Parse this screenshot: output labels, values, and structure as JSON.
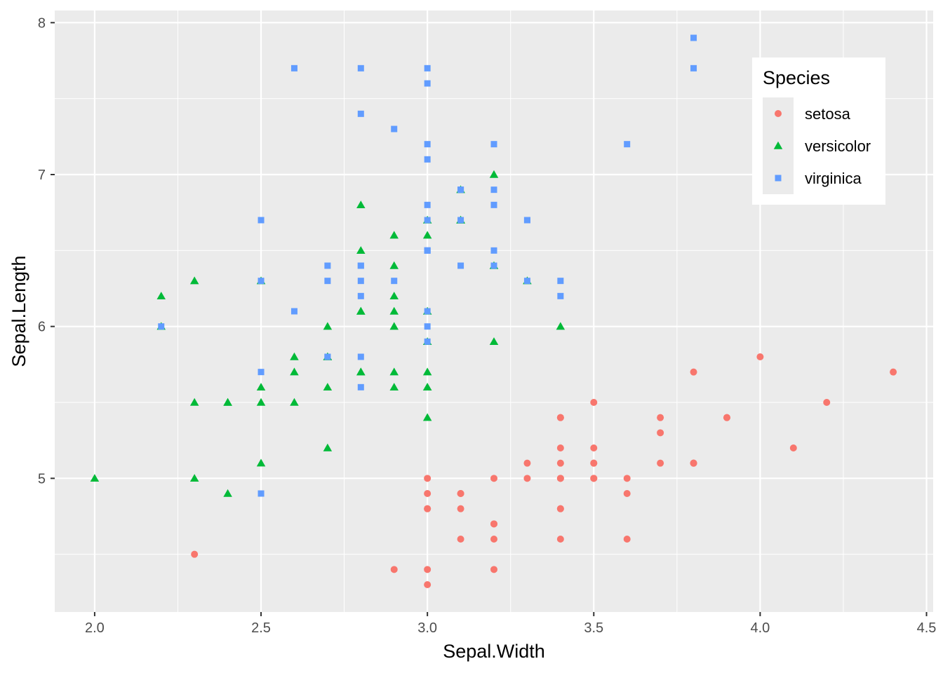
{
  "chart_data": {
    "type": "scatter",
    "title": "",
    "xlabel": "Sepal.Width",
    "ylabel": "Sepal.Length",
    "xlim": [
      1.88,
      4.52
    ],
    "ylim": [
      4.12,
      8.08
    ],
    "x_ticks": [
      2.0,
      2.5,
      3.0,
      3.5,
      4.0,
      4.5
    ],
    "x_tick_labels": [
      "2.0",
      "2.5",
      "3.0",
      "3.5",
      "4.0",
      "4.5"
    ],
    "y_ticks": [
      5,
      6,
      7,
      8
    ],
    "y_tick_labels": [
      "5",
      "6",
      "7",
      "8"
    ],
    "grid": true,
    "legend": {
      "title": "Species",
      "placement": "top-right inside"
    },
    "series": [
      {
        "name": "setosa",
        "color": "#F8766D",
        "shape": "circle",
        "points": [
          [
            3.5,
            5.1
          ],
          [
            3.0,
            4.9
          ],
          [
            3.2,
            4.7
          ],
          [
            3.1,
            4.6
          ],
          [
            3.6,
            5.0
          ],
          [
            3.9,
            5.4
          ],
          [
            3.4,
            4.6
          ],
          [
            3.4,
            5.0
          ],
          [
            2.9,
            4.4
          ],
          [
            3.1,
            4.9
          ],
          [
            3.7,
            5.4
          ],
          [
            3.4,
            4.8
          ],
          [
            3.0,
            4.8
          ],
          [
            3.0,
            4.3
          ],
          [
            4.0,
            5.8
          ],
          [
            4.4,
            5.7
          ],
          [
            3.9,
            5.4
          ],
          [
            3.5,
            5.1
          ],
          [
            3.8,
            5.7
          ],
          [
            3.8,
            5.1
          ],
          [
            3.4,
            5.4
          ],
          [
            3.7,
            5.1
          ],
          [
            3.6,
            4.6
          ],
          [
            3.3,
            5.1
          ],
          [
            3.4,
            4.8
          ],
          [
            3.0,
            5.0
          ],
          [
            3.4,
            5.0
          ],
          [
            3.5,
            5.2
          ],
          [
            3.4,
            5.2
          ],
          [
            3.2,
            4.7
          ],
          [
            3.1,
            4.8
          ],
          [
            3.4,
            5.4
          ],
          [
            4.1,
            5.2
          ],
          [
            4.2,
            5.5
          ],
          [
            3.1,
            4.9
          ],
          [
            3.2,
            5.0
          ],
          [
            3.5,
            5.5
          ],
          [
            3.6,
            4.9
          ],
          [
            3.0,
            4.4
          ],
          [
            3.4,
            5.1
          ],
          [
            3.5,
            5.0
          ],
          [
            2.3,
            4.5
          ],
          [
            3.2,
            4.4
          ],
          [
            3.5,
            5.0
          ],
          [
            3.8,
            5.1
          ],
          [
            3.0,
            4.8
          ],
          [
            3.8,
            5.1
          ],
          [
            3.2,
            4.6
          ],
          [
            3.7,
            5.3
          ],
          [
            3.3,
            5.0
          ]
        ]
      },
      {
        "name": "versicolor",
        "color": "#00BA38",
        "shape": "triangle",
        "points": [
          [
            3.2,
            7.0
          ],
          [
            3.2,
            6.4
          ],
          [
            3.1,
            6.9
          ],
          [
            2.3,
            5.5
          ],
          [
            2.8,
            6.5
          ],
          [
            2.8,
            5.7
          ],
          [
            3.3,
            6.3
          ],
          [
            2.4,
            4.9
          ],
          [
            2.9,
            6.6
          ],
          [
            2.7,
            5.2
          ],
          [
            2.0,
            5.0
          ],
          [
            3.0,
            5.9
          ],
          [
            2.2,
            6.0
          ],
          [
            2.9,
            6.1
          ],
          [
            2.9,
            5.6
          ],
          [
            3.1,
            6.7
          ],
          [
            3.0,
            5.6
          ],
          [
            2.7,
            5.8
          ],
          [
            2.2,
            6.2
          ],
          [
            2.5,
            5.6
          ],
          [
            3.2,
            5.9
          ],
          [
            2.8,
            6.1
          ],
          [
            2.5,
            6.3
          ],
          [
            2.8,
            6.1
          ],
          [
            2.9,
            6.4
          ],
          [
            3.0,
            6.6
          ],
          [
            2.8,
            6.8
          ],
          [
            3.0,
            6.7
          ],
          [
            2.9,
            6.0
          ],
          [
            2.6,
            5.7
          ],
          [
            2.4,
            5.5
          ],
          [
            2.4,
            5.5
          ],
          [
            2.7,
            5.8
          ],
          [
            2.7,
            6.0
          ],
          [
            3.0,
            5.4
          ],
          [
            3.4,
            6.0
          ],
          [
            3.1,
            6.7
          ],
          [
            2.3,
            6.3
          ],
          [
            3.0,
            5.6
          ],
          [
            2.5,
            5.5
          ],
          [
            2.6,
            5.5
          ],
          [
            3.0,
            6.1
          ],
          [
            2.6,
            5.8
          ],
          [
            2.3,
            5.0
          ],
          [
            2.7,
            5.6
          ],
          [
            3.0,
            5.7
          ],
          [
            2.9,
            5.7
          ],
          [
            2.9,
            6.2
          ],
          [
            2.5,
            5.1
          ],
          [
            2.8,
            5.7
          ]
        ]
      },
      {
        "name": "virginica",
        "color": "#619CFF",
        "shape": "square",
        "points": [
          [
            3.3,
            6.3
          ],
          [
            2.7,
            5.8
          ],
          [
            3.0,
            7.1
          ],
          [
            2.9,
            6.3
          ],
          [
            3.0,
            6.5
          ],
          [
            3.0,
            7.6
          ],
          [
            2.5,
            4.9
          ],
          [
            2.9,
            7.3
          ],
          [
            2.5,
            6.7
          ],
          [
            3.6,
            7.2
          ],
          [
            3.2,
            6.5
          ],
          [
            2.7,
            6.4
          ],
          [
            3.0,
            6.8
          ],
          [
            2.5,
            5.7
          ],
          [
            2.8,
            5.8
          ],
          [
            3.2,
            6.4
          ],
          [
            3.0,
            6.5
          ],
          [
            3.8,
            7.7
          ],
          [
            2.6,
            7.7
          ],
          [
            2.2,
            6.0
          ],
          [
            3.2,
            6.9
          ],
          [
            2.8,
            5.6
          ],
          [
            2.8,
            7.7
          ],
          [
            2.7,
            6.3
          ],
          [
            3.3,
            6.7
          ],
          [
            3.2,
            7.2
          ],
          [
            2.8,
            6.2
          ],
          [
            3.0,
            6.1
          ],
          [
            2.8,
            6.4
          ],
          [
            3.0,
            7.2
          ],
          [
            2.8,
            7.4
          ],
          [
            3.8,
            7.9
          ],
          [
            2.8,
            6.4
          ],
          [
            2.8,
            6.3
          ],
          [
            2.6,
            6.1
          ],
          [
            3.0,
            7.7
          ],
          [
            3.4,
            6.3
          ],
          [
            3.1,
            6.4
          ],
          [
            3.0,
            6.0
          ],
          [
            3.1,
            6.9
          ],
          [
            3.1,
            6.7
          ],
          [
            3.1,
            6.9
          ],
          [
            2.7,
            5.8
          ],
          [
            3.2,
            6.8
          ],
          [
            3.3,
            6.7
          ],
          [
            3.0,
            6.7
          ],
          [
            2.5,
            6.3
          ],
          [
            3.0,
            6.5
          ],
          [
            3.4,
            6.2
          ],
          [
            3.0,
            5.9
          ]
        ]
      }
    ]
  }
}
